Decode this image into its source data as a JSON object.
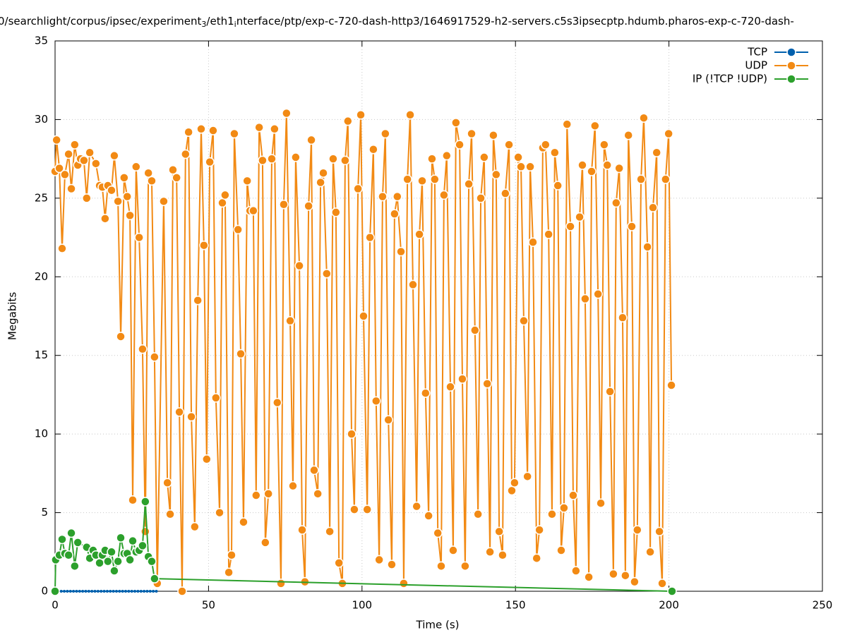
{
  "chart_data": {
    "type": "line",
    "title": [
      "0/searchlight/corpus/ipsec/experiment",
      "3",
      "/eth1",
      "i",
      "nterface/ptp/exp-c-720-dash-http3/1646917529-h2-servers.c5s3ipsecptp.hdumb.pharos-exp-c-720-dash-"
    ],
    "xlabel": "Time (s)",
    "ylabel": "Megabits",
    "xlim": [
      0,
      250
    ],
    "xticks": [
      0,
      50,
      100,
      150,
      200,
      250
    ],
    "ylim": [
      0,
      35
    ],
    "yticks": [
      0,
      5,
      10,
      15,
      20,
      25,
      30,
      35
    ],
    "grid": true,
    "legend": "top-right",
    "series": [
      {
        "name": "TCP",
        "color": "#0060ad",
        "x": [
          0,
          1,
          2,
          3,
          4,
          5,
          6,
          7,
          8,
          9,
          10,
          11,
          12,
          13,
          14,
          15,
          16,
          17,
          18,
          19,
          20,
          21,
          22,
          23,
          24,
          25,
          26,
          27,
          28,
          29,
          30,
          31,
          32,
          33
        ],
        "values": [
          0,
          0,
          0,
          0,
          0,
          0,
          0,
          0,
          0,
          0,
          0,
          0,
          0,
          0,
          0,
          0,
          0,
          0,
          0,
          0,
          0,
          0,
          0,
          0,
          0,
          0,
          0,
          0,
          0,
          0,
          0,
          0,
          0,
          0
        ]
      },
      {
        "name": "UDP",
        "color": "#f28a14",
        "x": [
          0,
          0.5,
          1.4,
          2.3,
          3.2,
          4.4,
          5.3,
          6.4,
          7.4,
          8.3,
          9.4,
          10.3,
          11.3,
          13.3,
          14.5,
          15.4,
          16.3,
          17.2,
          18.4,
          19.3,
          20.5,
          21.4,
          22.5,
          23.5,
          24.4,
          25.3,
          26.4,
          27.4,
          28.5,
          29.4,
          30.4,
          31.5,
          32.4,
          33.3,
          35.4,
          36.6,
          37.5,
          38.4,
          39.6,
          40.5,
          41.4,
          42.5,
          43.5,
          44.4,
          45.5,
          46.5,
          47.6,
          48.5,
          49.4,
          50.4,
          51.5,
          52.4,
          53.6,
          54.5,
          55.4,
          56.6,
          57.5,
          58.4,
          59.6,
          60.5,
          61.4,
          62.6,
          63.5,
          64.6,
          65.5,
          66.5,
          67.6,
          68.5,
          69.5,
          70.6,
          71.5,
          72.4,
          73.6,
          74.5,
          75.4,
          76.6,
          77.5,
          78.4,
          79.6,
          80.5,
          81.4,
          82.6,
          83.5,
          84.4,
          85.6,
          86.5,
          87.4,
          88.5,
          89.5,
          90.6,
          91.5,
          92.5,
          93.6,
          94.5,
          95.4,
          96.6,
          97.5,
          98.7,
          99.6,
          100.5,
          101.7,
          102.6,
          103.7,
          104.6,
          105.6,
          106.7,
          107.6,
          108.6,
          109.7,
          110.6,
          111.5,
          112.7,
          113.6,
          114.8,
          115.7,
          116.6,
          117.8,
          118.7,
          119.6,
          120.7,
          121.7,
          122.8,
          123.7,
          124.7,
          125.8,
          126.7,
          127.6,
          128.8,
          129.7,
          130.6,
          131.8,
          132.7,
          133.6,
          134.8,
          135.7,
          136.8,
          137.8,
          138.7,
          139.8,
          140.8,
          141.7,
          142.8,
          143.7,
          144.7,
          145.8,
          146.7,
          147.9,
          148.8,
          149.7,
          150.9,
          151.8,
          152.7,
          153.9,
          154.8,
          155.7,
          156.9,
          157.8,
          158.9,
          159.8,
          160.8,
          161.9,
          162.8,
          163.8,
          164.9,
          165.8,
          166.8,
          167.9,
          168.8,
          169.7,
          170.9,
          171.8,
          172.7,
          173.9,
          174.8,
          175.9,
          176.9,
          177.8,
          178.9,
          179.9,
          180.8,
          181.9,
          182.8,
          183.8,
          184.9,
          185.8,
          186.8,
          187.9,
          188.8,
          189.7,
          190.9,
          191.8,
          193.0,
          193.9,
          194.8,
          196.0,
          196.9,
          197.8,
          198.9,
          199.9,
          200.8
        ],
        "values": [
          26.7,
          28.7,
          26.9,
          21.8,
          26.5,
          27.8,
          25.6,
          28.4,
          27.1,
          27.5,
          27.4,
          25.0,
          27.9,
          27.2,
          25.8,
          25.7,
          23.7,
          25.8,
          25.5,
          27.7,
          24.8,
          16.2,
          26.3,
          25.1,
          23.9,
          5.8,
          27.0,
          22.5,
          15.4,
          3.8,
          26.6,
          26.1,
          14.9,
          0.5,
          24.8,
          6.9,
          4.9,
          26.8,
          26.3,
          11.4,
          0,
          27.8,
          29.2,
          11.1,
          4.1,
          18.5,
          29.4,
          22.0,
          8.4,
          27.3,
          29.3,
          12.3,
          5.0,
          24.7,
          25.2,
          1.2,
          2.3,
          29.1,
          23.0,
          15.1,
          4.4,
          26.1,
          24.2,
          24.2,
          6.1,
          29.5,
          27.4,
          3.1,
          6.2,
          27.5,
          29.4,
          12.0,
          0.5,
          24.6,
          30.4,
          17.2,
          6.7,
          27.6,
          20.7,
          3.9,
          0.6,
          24.5,
          28.7,
          7.7,
          6.2,
          26.0,
          26.6,
          20.2,
          3.8,
          27.5,
          24.1,
          1.8,
          0.5,
          27.4,
          29.9,
          10.0,
          5.2,
          25.6,
          30.3,
          17.5,
          5.2,
          22.5,
          28.1,
          12.1,
          2.0,
          25.1,
          29.1,
          10.9,
          1.7,
          24.0,
          25.1,
          21.6,
          0.5,
          26.2,
          30.3,
          19.5,
          5.4,
          22.7,
          26.1,
          12.6,
          4.8,
          27.5,
          26.2,
          3.7,
          1.6,
          25.2,
          27.7,
          13.0,
          2.6,
          29.8,
          28.4,
          13.5,
          1.6,
          25.9,
          29.1,
          16.6,
          4.9,
          25.0,
          27.6,
          13.2,
          2.5,
          29.0,
          26.5,
          3.8,
          2.3,
          25.3,
          28.4,
          6.4,
          6.9,
          27.6,
          27.0,
          17.2,
          7.3,
          27.0,
          22.2,
          2.1,
          3.9,
          28.2,
          28.4,
          22.7,
          4.9,
          27.9,
          25.8,
          2.6,
          5.3,
          29.7,
          23.2,
          6.1,
          1.3,
          23.8,
          27.1,
          18.6,
          0.9,
          26.7,
          29.6,
          18.9,
          5.6,
          28.4,
          27.1,
          12.7,
          1.1,
          24.7,
          26.9,
          17.4,
          1.0,
          29.0,
          23.2,
          0.6,
          3.9,
          26.2,
          30.1,
          21.9,
          2.5,
          24.4,
          27.9,
          3.8,
          0.5,
          26.2,
          29.1,
          13.1
        ]
      },
      {
        "name": "IP (!TCP  !UDP)",
        "color": "#2ca02c",
        "x": [
          0,
          0.2,
          1.4,
          2.3,
          3.2,
          4.4,
          5.3,
          6.4,
          7.4,
          10.3,
          11.3,
          12.4,
          13.3,
          14.5,
          15.4,
          16.3,
          17.2,
          18.4,
          19.3,
          20.5,
          21.4,
          22.5,
          23.5,
          24.4,
          25.3,
          26.4,
          27.4,
          28.5,
          29.4,
          30.4,
          31.5,
          32.4,
          201
        ],
        "values": [
          0,
          2.0,
          2.3,
          3.3,
          2.4,
          2.3,
          3.7,
          1.6,
          3.1,
          2.8,
          2.1,
          2.6,
          2.3,
          1.8,
          2.3,
          2.6,
          1.9,
          2.5,
          1.3,
          1.9,
          3.4,
          2.4,
          2.4,
          2.0,
          3.2,
          2.5,
          2.6,
          2.9,
          5.7,
          2.2,
          1.9,
          0.8,
          0
        ]
      }
    ]
  }
}
